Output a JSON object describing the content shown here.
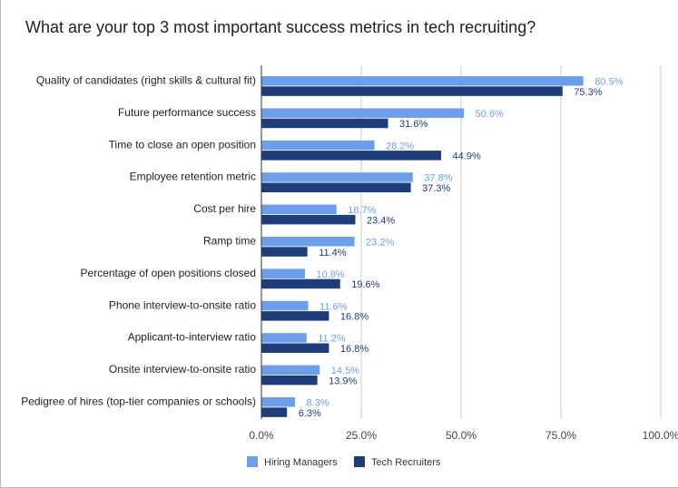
{
  "colors": {
    "hiring_managers": "#6d9eeb",
    "tech_recruiters": "#1f3d7a",
    "grid": "#cccccc",
    "axis": "#333333"
  },
  "chart_data": {
    "type": "bar",
    "orientation": "horizontal",
    "title": "What are your top 3 most important success metrics in tech recruiting?",
    "categories": [
      "Quality of candidates (right skills & cultural fit)",
      "Future performance success",
      "Time to close an open position",
      "Employee retention metric",
      "Cost per hire",
      "Ramp time",
      "Percentage of open positions closed",
      "Phone interview-to-onsite ratio",
      "Applicant-to-interview ratio",
      "Onsite interview-to-onsite ratio",
      "Pedigree of hires (top-tier companies or schools)"
    ],
    "series": [
      {
        "name": "Hiring Managers",
        "values": [
          80.5,
          50.6,
          28.2,
          37.8,
          18.7,
          23.2,
          10.8,
          11.6,
          11.2,
          14.5,
          8.3
        ],
        "labels": [
          "80.5%",
          "50.6%",
          "28.2%",
          "37.8%",
          "18.7%",
          "23.2%",
          "10.8%",
          "11.6%",
          "11.2%",
          "14.5%",
          "8.3%"
        ]
      },
      {
        "name": "Tech Recruiters",
        "values": [
          75.3,
          31.6,
          44.9,
          37.3,
          23.4,
          11.4,
          19.6,
          16.8,
          16.8,
          13.9,
          6.3
        ],
        "labels": [
          "75.3%",
          "31.6%",
          "44.9%",
          "37.3%",
          "23.4%",
          "11.4%",
          "19.6%",
          "16.8%",
          "16.8%",
          "13.9%",
          "6.3%"
        ]
      }
    ],
    "xlim": [
      0,
      100
    ],
    "xticks": [
      0,
      25,
      50,
      75,
      100
    ],
    "xtick_labels": [
      "0.0%",
      "25.0%",
      "50.0%",
      "75.0%",
      "100.0%"
    ],
    "grid": true,
    "legend_position": "bottom"
  }
}
